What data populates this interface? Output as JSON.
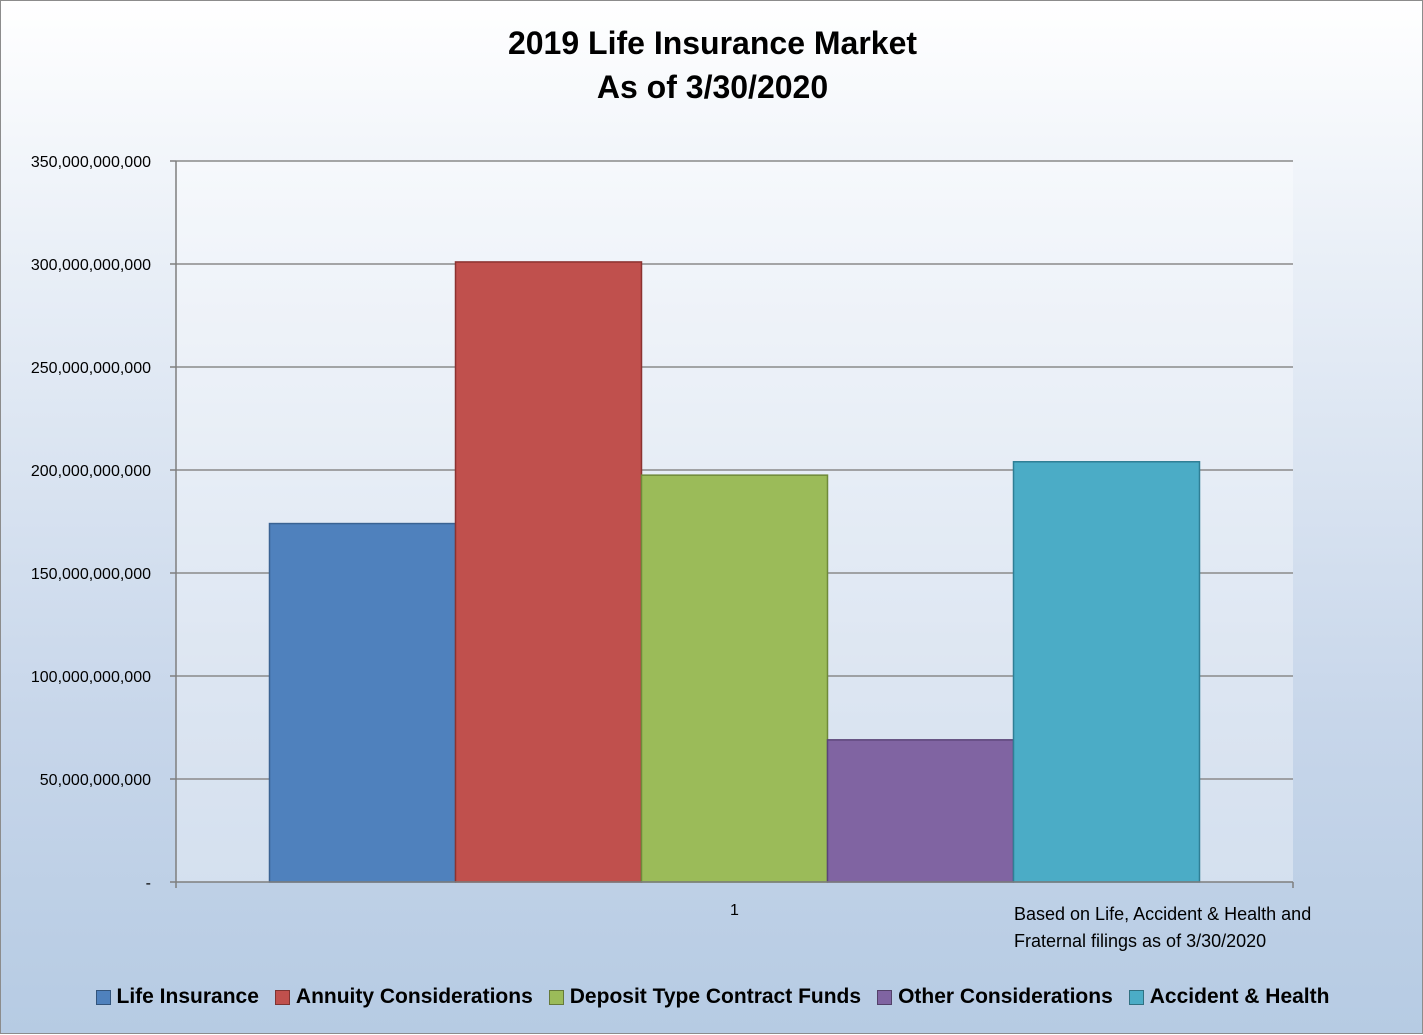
{
  "chart_data": {
    "type": "bar",
    "title": "2019 Life Insurance Market",
    "subtitle": "As of 3/30/2020",
    "categories": [
      "1"
    ],
    "series": [
      {
        "name": "Life Insurance",
        "values": [
          174000000000
        ],
        "color": "#4f81bd",
        "stroke": "#3a6393"
      },
      {
        "name": "Annuity Considerations",
        "values": [
          301000000000
        ],
        "color": "#c0504d",
        "stroke": "#8c3230"
      },
      {
        "name": "Deposit Type Contract Funds",
        "values": [
          197500000000
        ],
        "color": "#9bbb59",
        "stroke": "#6f8a3a"
      },
      {
        "name": "Other Considerations",
        "values": [
          69000000000
        ],
        "color": "#8064a2",
        "stroke": "#5a4478"
      },
      {
        "name": "Accident & Health",
        "values": [
          204000000000
        ],
        "color": "#4bacc6",
        "stroke": "#2f7f95"
      }
    ],
    "ylim": [
      0,
      350000000000
    ],
    "yticks": [
      0,
      50000000000,
      100000000000,
      150000000000,
      200000000000,
      250000000000,
      300000000000,
      350000000000
    ],
    "ytick_labels": [
      "-",
      "50,000,000,000",
      "100,000,000,000",
      "150,000,000,000",
      "200,000,000,000",
      "250,000,000,000",
      "300,000,000,000",
      "350,000,000,000"
    ],
    "grid": true,
    "legend": "bottom",
    "note": [
      "Based on Life, Accident & Health and",
      "Fraternal filings as of 3/30/2020"
    ]
  }
}
